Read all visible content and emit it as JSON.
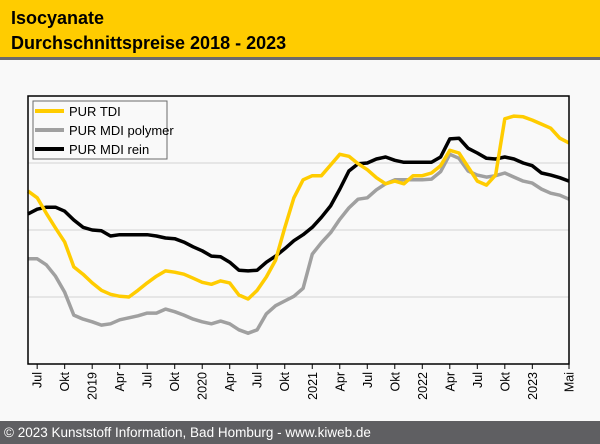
{
  "header": {
    "title_line1": "Isocyanate",
    "title_line2": "Durchschnittspreise 2018 - 2023"
  },
  "footer": {
    "text": "© 2023 Kunststoff Information, Bad Homburg - www.kiweb.de"
  },
  "colors": {
    "header_bg": "#ffcc00",
    "footer_bg": "#5f5f62",
    "tdi": "#ffcc00",
    "mdi_polymer": "#a0a0a0",
    "mdi_rein": "#000000",
    "grid": "#d4d4d4"
  },
  "chart_data": {
    "type": "line",
    "title": "Isocyanate Durchschnittspreise 2018 - 2023",
    "xlabel": "",
    "ylabel": "",
    "y_unit": "relative index (no y-axis labels shown)",
    "ylim": [
      0,
      4
    ],
    "y_gridlines": [
      1,
      2,
      3
    ],
    "grid": true,
    "legend_position": "top-left",
    "x_start": "2018-06",
    "x_end": "2023-05",
    "x_ticks": [
      {
        "label": "Jul",
        "month_index": 1
      },
      {
        "label": "Okt",
        "month_index": 4
      },
      {
        "label": "2019",
        "month_index": 7
      },
      {
        "label": "Apr",
        "month_index": 10
      },
      {
        "label": "Jul",
        "month_index": 13
      },
      {
        "label": "Okt",
        "month_index": 16
      },
      {
        "label": "2020",
        "month_index": 19
      },
      {
        "label": "Apr",
        "month_index": 22
      },
      {
        "label": "Jul",
        "month_index": 25
      },
      {
        "label": "Okt",
        "month_index": 28
      },
      {
        "label": "2021",
        "month_index": 31
      },
      {
        "label": "Apr",
        "month_index": 34
      },
      {
        "label": "Jul",
        "month_index": 37
      },
      {
        "label": "Okt",
        "month_index": 40
      },
      {
        "label": "2022",
        "month_index": 43
      },
      {
        "label": "Apr",
        "month_index": 46
      },
      {
        "label": "Jul",
        "month_index": 49
      },
      {
        "label": "Okt",
        "month_index": 52
      },
      {
        "label": "2023",
        "month_index": 55
      },
      {
        "label": "Mai",
        "month_index": 59
      }
    ],
    "series": [
      {
        "name": "PUR TDI",
        "color": "#ffcc00",
        "values": [
          2.58,
          2.48,
          2.25,
          2.03,
          1.82,
          1.45,
          1.34,
          1.21,
          1.1,
          1.04,
          1.01,
          1.0,
          1.1,
          1.21,
          1.31,
          1.39,
          1.37,
          1.34,
          1.28,
          1.22,
          1.19,
          1.24,
          1.21,
          1.03,
          0.97,
          1.1,
          1.3,
          1.55,
          2.03,
          2.48,
          2.75,
          2.81,
          2.81,
          2.97,
          3.13,
          3.1,
          2.99,
          2.9,
          2.78,
          2.69,
          2.73,
          2.69,
          2.81,
          2.81,
          2.85,
          2.96,
          3.19,
          3.15,
          2.94,
          2.73,
          2.67,
          2.82,
          3.66,
          3.7,
          3.69,
          3.64,
          3.58,
          3.52,
          3.37,
          3.3
        ]
      },
      {
        "name": "PUR MDI polymer",
        "color": "#a0a0a0",
        "values": [
          1.57,
          1.57,
          1.48,
          1.31,
          1.07,
          0.73,
          0.67,
          0.63,
          0.58,
          0.6,
          0.66,
          0.69,
          0.72,
          0.76,
          0.76,
          0.82,
          0.78,
          0.73,
          0.67,
          0.63,
          0.6,
          0.64,
          0.6,
          0.51,
          0.46,
          0.51,
          0.75,
          0.87,
          0.94,
          1.01,
          1.13,
          1.64,
          1.81,
          1.96,
          2.16,
          2.33,
          2.46,
          2.48,
          2.6,
          2.69,
          2.75,
          2.75,
          2.75,
          2.75,
          2.76,
          2.87,
          3.13,
          3.07,
          2.88,
          2.82,
          2.79,
          2.81,
          2.85,
          2.79,
          2.73,
          2.7,
          2.61,
          2.55,
          2.52,
          2.46
        ]
      },
      {
        "name": "PUR MDI rein",
        "color": "#000000",
        "values": [
          2.24,
          2.31,
          2.34,
          2.34,
          2.28,
          2.15,
          2.04,
          2.0,
          1.99,
          1.91,
          1.93,
          1.93,
          1.93,
          1.93,
          1.91,
          1.88,
          1.87,
          1.82,
          1.75,
          1.69,
          1.61,
          1.6,
          1.52,
          1.4,
          1.39,
          1.4,
          1.52,
          1.61,
          1.72,
          1.84,
          1.93,
          2.04,
          2.19,
          2.36,
          2.61,
          2.88,
          2.99,
          3.0,
          3.06,
          3.09,
          3.04,
          3.01,
          3.01,
          3.01,
          3.01,
          3.09,
          3.36,
          3.37,
          3.22,
          3.15,
          3.07,
          3.06,
          3.09,
          3.06,
          3.0,
          2.96,
          2.85,
          2.82,
          2.78,
          2.73
        ]
      }
    ]
  }
}
